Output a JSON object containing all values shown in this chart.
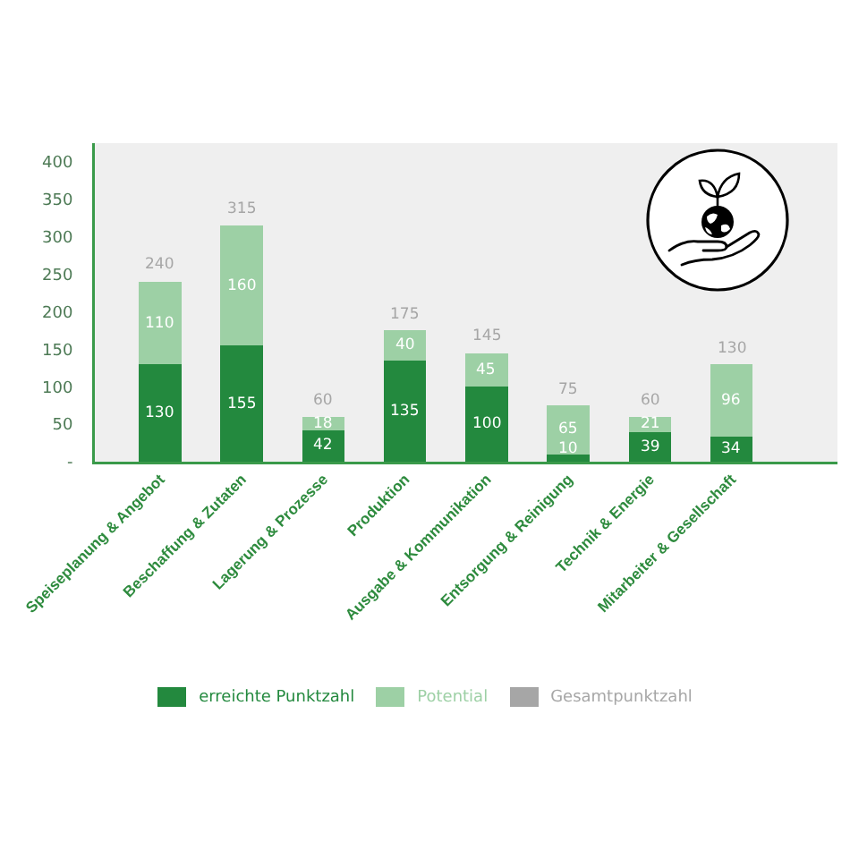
{
  "chart_data": {
    "type": "bar",
    "stacked": true,
    "categories": [
      "Speiseplanung & Angebot",
      "Beschaffung & Zutaten",
      "Lagerung & Prozesse",
      "Produktion",
      "Ausgabe & Kommunikation",
      "Entsorgung & Reinigung",
      "Technik & Energie",
      "Mitarbeiter & Gesellschaft"
    ],
    "series": [
      {
        "name": "erreichte Punktzahl",
        "color": "#23893e",
        "values": [
          130,
          155,
          42,
          135,
          100,
          10,
          39,
          34
        ]
      },
      {
        "name": "Potential",
        "color": "#9dd0a5",
        "values": [
          110,
          160,
          18,
          40,
          45,
          65,
          21,
          96
        ]
      },
      {
        "name": "Gesamtpunktzahl",
        "color": "#a6a6a6",
        "values": [
          null,
          null,
          null,
          null,
          null,
          null,
          null,
          null
        ]
      }
    ],
    "totals": [
      "240",
      "315",
      "60",
      "175",
      "145",
      "75",
      "60",
      "130"
    ],
    "ylim": [
      0,
      425
    ],
    "yticks": [
      {
        "value": 0,
        "label": "-"
      },
      50,
      100,
      150,
      200,
      250,
      300,
      350,
      400
    ],
    "data_labels": true,
    "legend": "bottom"
  }
}
